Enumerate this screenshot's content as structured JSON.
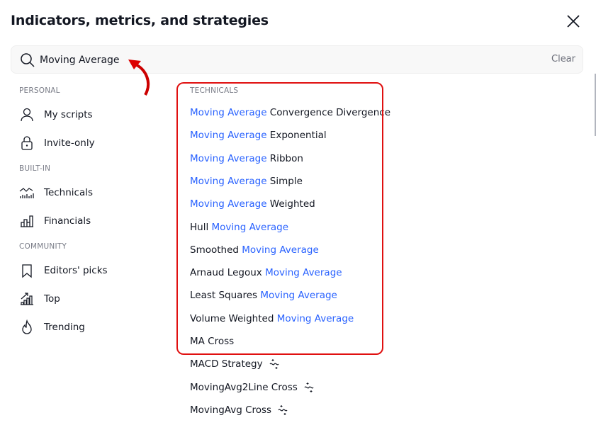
{
  "dialog": {
    "title": "Indicators, metrics, and strategies",
    "close_icon": "close-icon"
  },
  "search": {
    "value": "Moving Average",
    "clear_label": "Clear",
    "icon": "search-icon"
  },
  "sidebar": {
    "sections": [
      {
        "label": "PERSONAL",
        "items": [
          {
            "label": "My scripts",
            "icon": "user-icon"
          },
          {
            "label": "Invite-only",
            "icon": "lock-icon"
          }
        ]
      },
      {
        "label": "BUILT-IN",
        "items": [
          {
            "label": "Technicals",
            "icon": "technicals-chart-icon"
          },
          {
            "label": "Financials",
            "icon": "financials-bar-icon"
          }
        ]
      },
      {
        "label": "COMMUNITY",
        "items": [
          {
            "label": "Editors' picks",
            "icon": "bookmark-icon"
          },
          {
            "label": "Top",
            "icon": "top-chart-icon"
          },
          {
            "label": "Trending",
            "icon": "flame-icon"
          }
        ]
      }
    ]
  },
  "results": {
    "section_label": "TECHNICALS",
    "items": [
      [
        {
          "t": "Moving Average",
          "hl": true
        },
        {
          "t": " Convergence Divergence",
          "hl": false
        }
      ],
      [
        {
          "t": "Moving Average",
          "hl": true
        },
        {
          "t": " Exponential",
          "hl": false
        }
      ],
      [
        {
          "t": "Moving Average",
          "hl": true
        },
        {
          "t": " Ribbon",
          "hl": false
        }
      ],
      [
        {
          "t": "Moving Average",
          "hl": true
        },
        {
          "t": " Simple",
          "hl": false
        }
      ],
      [
        {
          "t": "Moving Average",
          "hl": true
        },
        {
          "t": " Weighted",
          "hl": false
        }
      ],
      [
        {
          "t": "Hull ",
          "hl": false
        },
        {
          "t": "Moving Average",
          "hl": true
        }
      ],
      [
        {
          "t": "Smoothed ",
          "hl": false
        },
        {
          "t": "Moving Average",
          "hl": true
        }
      ],
      [
        {
          "t": "Arnaud Legoux ",
          "hl": false
        },
        {
          "t": "Moving Average",
          "hl": true
        }
      ],
      [
        {
          "t": "Least Squares ",
          "hl": false
        },
        {
          "t": "Moving Average",
          "hl": true
        }
      ],
      [
        {
          "t": "Volume Weighted ",
          "hl": false
        },
        {
          "t": "Moving Average",
          "hl": true
        }
      ],
      [
        {
          "t": "MA Cross",
          "hl": false
        }
      ]
    ],
    "strategies": [
      {
        "label": "MACD Strategy",
        "icon": "strategy-icon"
      },
      {
        "label": "MovingAvg2Line Cross",
        "icon": "strategy-icon"
      },
      {
        "label": "MovingAvg Cross",
        "icon": "strategy-icon"
      }
    ]
  },
  "colors": {
    "highlight": "#2962ff",
    "annotation": "#e01010",
    "text": "#131722",
    "muted": "#787b86"
  }
}
